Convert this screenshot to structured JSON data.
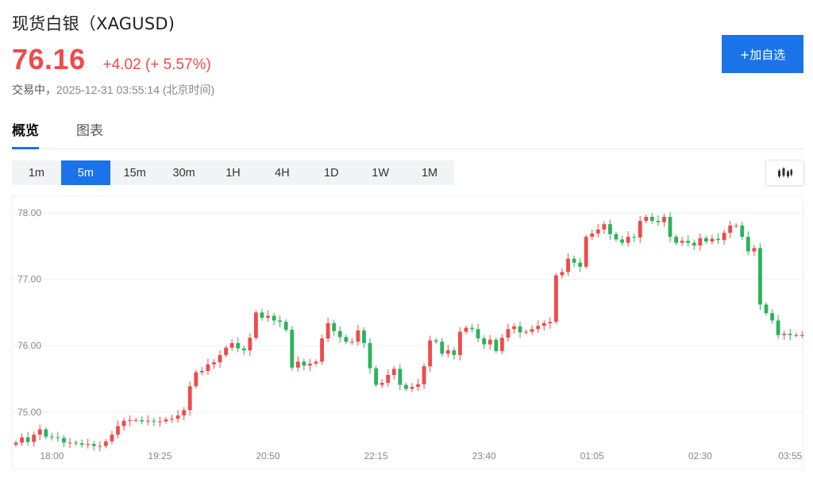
{
  "header": {
    "title": "现货白银（XAGUSD)",
    "price": "76.16",
    "change": "+4.02 (+ 5.57%)",
    "status": "交易中，",
    "timestamp": "2025-12-31 03:55:14 (北京时间)",
    "add_button": "+加自选"
  },
  "tabs": [
    {
      "label": "概览",
      "active": true
    },
    {
      "label": "图表",
      "active": false
    }
  ],
  "periods": [
    {
      "label": "1m",
      "active": false
    },
    {
      "label": "5m",
      "active": true
    },
    {
      "label": "15m",
      "active": false
    },
    {
      "label": "30m",
      "active": false
    },
    {
      "label": "1H",
      "active": false
    },
    {
      "label": "4H",
      "active": false
    },
    {
      "label": "1D",
      "active": false
    },
    {
      "label": "1W",
      "active": false
    },
    {
      "label": "1M",
      "active": false
    }
  ],
  "chart_type_icon": "candlestick-chart-icon",
  "colors": {
    "up": "#f04a4a",
    "down": "#2bb35a",
    "accent": "#1a73e8",
    "grid": "#efefef"
  },
  "chart_data": {
    "type": "candlestick",
    "ylim": [
      74.4,
      78.2
    ],
    "y_ticks": [
      "78.00",
      "77.00",
      "76.00",
      "75.00"
    ],
    "x_ticks": [
      "18:00",
      "19:25",
      "20:50",
      "22:15",
      "23:40",
      "01:05",
      "02:30",
      "03:55"
    ],
    "candle_count": 132,
    "closes": [
      74.54,
      74.62,
      74.55,
      74.66,
      74.74,
      74.63,
      74.62,
      74.61,
      74.54,
      74.54,
      74.53,
      74.51,
      74.52,
      74.49,
      74.49,
      74.56,
      74.66,
      74.79,
      74.87,
      74.88,
      74.88,
      74.86,
      74.87,
      74.86,
      74.86,
      74.89,
      74.9,
      74.95,
      75.03,
      75.39,
      75.6,
      75.62,
      75.72,
      75.75,
      75.86,
      75.97,
      76.04,
      75.96,
      75.93,
      76.12,
      76.5,
      76.42,
      76.45,
      76.38,
      76.36,
      76.24,
      75.67,
      75.76,
      75.7,
      75.73,
      75.76,
      76.11,
      76.34,
      76.22,
      76.13,
      76.06,
      76.06,
      76.23,
      76.04,
      75.66,
      75.41,
      75.44,
      75.56,
      75.65,
      75.41,
      75.35,
      75.38,
      75.42,
      75.69,
      76.08,
      76.06,
      75.88,
      75.93,
      75.86,
      76.21,
      76.27,
      76.25,
      76.11,
      76.02,
      76.09,
      75.92,
      76.12,
      76.25,
      76.29,
      76.2,
      76.21,
      76.25,
      76.3,
      76.34,
      76.36,
      77.06,
      77.11,
      77.31,
      77.25,
      77.19,
      77.64,
      77.69,
      77.75,
      77.83,
      77.68,
      77.6,
      77.55,
      77.64,
      77.63,
      77.88,
      77.94,
      77.88,
      77.86,
      77.94,
      77.64,
      77.55,
      77.58,
      77.55,
      77.51,
      77.62,
      77.57,
      77.61,
      77.59,
      77.7,
      77.81,
      77.81,
      77.64,
      77.42,
      77.47,
      76.62,
      76.49,
      76.38,
      76.16,
      76.18,
      76.16,
      76.16,
      76.16
    ]
  }
}
